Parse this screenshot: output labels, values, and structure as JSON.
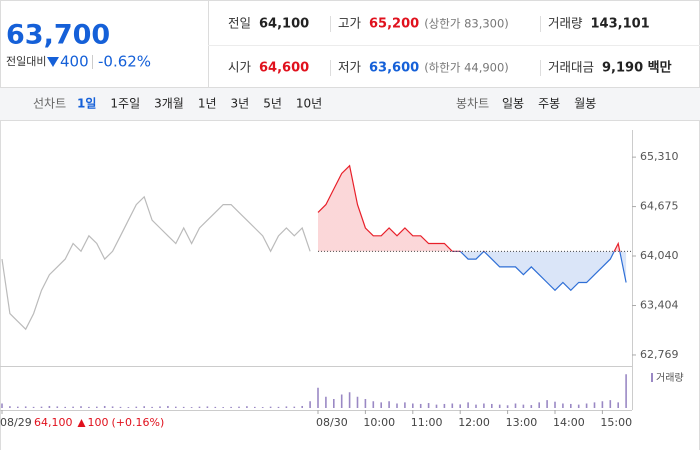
{
  "header": {
    "price": "63,700",
    "change_label": "전일대비",
    "change": "400",
    "change_rate": "-0.62%",
    "color": "#1560d8"
  },
  "summary": {
    "rows": [
      [
        {
          "label": "전일",
          "value": "64,100",
          "color": "#222222"
        },
        {
          "label": "고가",
          "value": "65,200",
          "note": "(상한가 83,300)",
          "color": "#e0111d"
        },
        {
          "label": "거래량",
          "value": "143,101",
          "color": "#222222"
        }
      ],
      [
        {
          "label": "시가",
          "value": "64,600",
          "color": "#e0111d"
        },
        {
          "label": "저가",
          "value": "63,600",
          "note": "(하한가 44,900)",
          "color": "#1560d8"
        },
        {
          "label": "거래대금",
          "value": "9,190 백만",
          "color": "#222222"
        }
      ]
    ]
  },
  "tabs": {
    "line_label": "선차트",
    "line_periods": [
      "1일",
      "1주일",
      "3개월",
      "1년",
      "3년",
      "5년",
      "10년"
    ],
    "selected": 0,
    "candle_label": "봉차트",
    "candle_periods": [
      "일봉",
      "주봉",
      "월봉"
    ]
  },
  "chart_data": {
    "type": "line",
    "categories": [
      "08/29",
      null,
      null,
      null,
      null,
      null,
      null,
      null,
      null,
      null,
      null,
      null,
      null,
      null,
      null,
      null,
      null,
      null,
      null,
      null,
      null,
      null,
      null,
      null,
      null,
      null,
      null,
      null,
      null,
      null,
      null,
      null,
      null,
      null,
      null,
      null,
      null,
      null,
      null,
      null,
      "08/30",
      null,
      null,
      null,
      null,
      null,
      "10:00",
      null,
      null,
      null,
      null,
      null,
      "11:00",
      null,
      null,
      null,
      null,
      null,
      "12:00",
      null,
      null,
      null,
      null,
      null,
      "13:00",
      null,
      null,
      null,
      null,
      null,
      "14:00",
      null,
      null,
      null,
      null,
      null,
      "15:00",
      null,
      null,
      null
    ],
    "series": [
      {
        "color": "#bbbbbb",
        "values": [
          64000,
          63300,
          63200,
          63100,
          63300,
          63600,
          63800,
          63900,
          64000,
          64200,
          64100,
          64300,
          64200,
          64000,
          64100,
          64300,
          64500,
          64700,
          64800,
          64500,
          64400,
          64300,
          64200,
          64400,
          64200,
          64400,
          64500,
          64600,
          64700,
          64700,
          64600,
          64500,
          64400,
          64300,
          64100,
          64300,
          64400,
          64300,
          64400,
          64100,
          null,
          null,
          null,
          null,
          null,
          null,
          null,
          null,
          null,
          null,
          null,
          null,
          null,
          null,
          null,
          null,
          null,
          null,
          null,
          null,
          null,
          null,
          null,
          null,
          null,
          null,
          null,
          null,
          null,
          null,
          null,
          null,
          null,
          null,
          null,
          null,
          null,
          null,
          null,
          null
        ]
      },
      {
        "color": "#e8202a",
        "down_color": "#2f6fd6",
        "fill": true,
        "values": [
          null,
          null,
          null,
          null,
          null,
          null,
          null,
          null,
          null,
          null,
          null,
          null,
          null,
          null,
          null,
          null,
          null,
          null,
          null,
          null,
          null,
          null,
          null,
          null,
          null,
          null,
          null,
          null,
          null,
          null,
          null,
          null,
          null,
          null,
          null,
          null,
          null,
          null,
          null,
          null,
          64600,
          64700,
          64900,
          65100,
          65200,
          64700,
          64400,
          64300,
          64300,
          64400,
          64300,
          64400,
          64300,
          64300,
          64200,
          64200,
          64200,
          64100,
          64100,
          64000,
          64000,
          64100,
          64000,
          63900,
          63900,
          63900,
          63800,
          63900,
          63800,
          63700,
          63600,
          63700,
          63600,
          63700,
          63700,
          63800,
          63900,
          64000,
          64200,
          63700
        ]
      }
    ],
    "baseline": 64100,
    "ylim": [
      62640,
      65530
    ],
    "yticks": [
      {
        "value": 62769,
        "label": "62,769"
      },
      {
        "value": 63404,
        "label": "63,404"
      },
      {
        "value": 64040,
        "label": "64,040"
      },
      {
        "value": 64675,
        "label": "64,675"
      },
      {
        "value": 65310,
        "label": "65,310"
      }
    ],
    "volume": {
      "label": "거래량",
      "color": "#9a88c4",
      "ylim": [
        0,
        16000
      ],
      "values": [
        2000,
        800,
        600,
        700,
        500,
        600,
        900,
        700,
        500,
        600,
        800,
        500,
        600,
        900,
        700,
        500,
        400,
        600,
        800,
        500,
        700,
        900,
        600,
        500,
        400,
        600,
        700,
        500,
        400,
        500,
        600,
        800,
        500,
        400,
        600,
        500,
        700,
        600,
        900,
        3000,
        9000,
        5000,
        4000,
        6000,
        7000,
        5000,
        4000,
        3000,
        2500,
        3000,
        2000,
        2500,
        2000,
        1800,
        2200,
        1500,
        1800,
        2000,
        1600,
        2500,
        1500,
        2000,
        1800,
        1500,
        1200,
        2000,
        1500,
        1300,
        2500,
        3500,
        2800,
        2000,
        1800,
        1500,
        2000,
        2500,
        3000,
        3500,
        2500,
        15000
      ]
    }
  },
  "prev_info": {
    "price": "64,100",
    "change": "100",
    "change_rate": "(+0.16%)",
    "color": "#e0111d"
  }
}
